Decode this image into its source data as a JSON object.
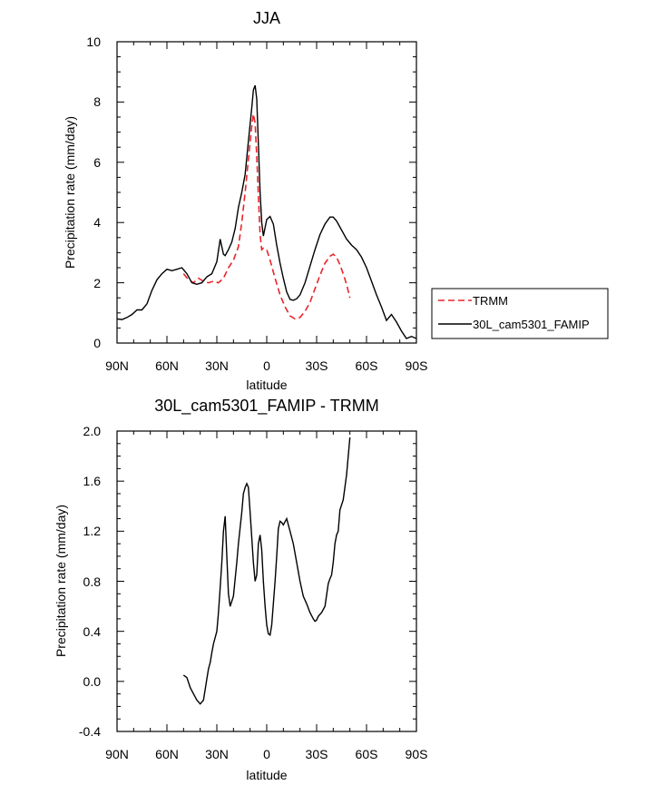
{
  "chart_data": [
    {
      "type": "line",
      "title": "JJA",
      "xlabel": "latitude",
      "ylabel": "Precipitation rate (mm/day)",
      "xlim": [
        90,
        -90
      ],
      "ylim": [
        0,
        10
      ],
      "x_ticks": [
        90,
        60,
        30,
        0,
        -30,
        -60,
        -90
      ],
      "x_tick_labels": [
        "90N",
        "60N",
        "30N",
        "0",
        "30S",
        "60S",
        "90S"
      ],
      "y_ticks": [
        0,
        2,
        4,
        6,
        8,
        10
      ],
      "y_tick_labels": [
        "0",
        "2",
        "4",
        "6",
        "8",
        "10"
      ],
      "legend": [
        "TRMM",
        "30L_cam5301_FAMIP"
      ],
      "series": [
        {
          "name": "TRMM",
          "color": "#e8242a",
          "dash": true,
          "x": [
            50,
            47,
            44,
            41,
            38,
            35,
            32,
            29,
            26,
            23,
            20,
            17,
            15,
            13,
            11,
            9,
            8,
            7,
            6,
            5,
            4,
            3,
            2,
            0,
            -2,
            -5,
            -8,
            -11,
            -14,
            -17,
            -20,
            -23,
            -26,
            -29,
            -32,
            -35,
            -38,
            -40,
            -42,
            -44,
            -46,
            -48,
            -50
          ],
          "values": [
            2.3,
            2.1,
            2.0,
            2.15,
            2.05,
            2.0,
            2.05,
            2.0,
            2.15,
            2.5,
            2.75,
            3.2,
            4.0,
            5.0,
            6.1,
            7.2,
            7.6,
            7.3,
            6.2,
            4.9,
            3.6,
            3.1,
            3.15,
            3.1,
            2.75,
            2.15,
            1.6,
            1.2,
            0.9,
            0.8,
            0.85,
            1.05,
            1.35,
            1.8,
            2.25,
            2.65,
            2.88,
            2.95,
            2.85,
            2.6,
            2.3,
            1.95,
            1.5
          ]
        },
        {
          "name": "30L_cam5301_FAMIP",
          "color": "#000000",
          "dash": false,
          "x": [
            90,
            87,
            84,
            81,
            78,
            75,
            72,
            69,
            66,
            63,
            60,
            57,
            54,
            51,
            48,
            45,
            42,
            39,
            36,
            33,
            30,
            28,
            27,
            26,
            25,
            23,
            21,
            19,
            17,
            15,
            13,
            11,
            9,
            8,
            7,
            6,
            5,
            4,
            3,
            2,
            0,
            -2,
            -4,
            -6,
            -8,
            -10,
            -12,
            -14,
            -16,
            -18,
            -20,
            -23,
            -26,
            -29,
            -32,
            -35,
            -38,
            -40,
            -42,
            -45,
            -48,
            -51,
            -54,
            -57,
            -60,
            -63,
            -66,
            -69,
            -72,
            -75,
            -78,
            -81,
            -84,
            -87,
            -90
          ],
          "values": [
            0.8,
            0.78,
            0.85,
            0.95,
            1.1,
            1.1,
            1.3,
            1.75,
            2.1,
            2.3,
            2.45,
            2.4,
            2.45,
            2.5,
            2.3,
            2.0,
            1.95,
            2.0,
            2.2,
            2.3,
            2.7,
            3.45,
            3.2,
            2.95,
            2.9,
            3.1,
            3.35,
            3.8,
            4.5,
            5.0,
            5.6,
            6.7,
            7.8,
            8.4,
            8.55,
            8.1,
            6.6,
            5.0,
            4.0,
            3.55,
            4.1,
            4.2,
            3.95,
            3.25,
            2.65,
            2.15,
            1.7,
            1.45,
            1.42,
            1.47,
            1.6,
            2.0,
            2.55,
            3.1,
            3.6,
            3.95,
            4.18,
            4.18,
            4.05,
            3.75,
            3.45,
            3.25,
            3.1,
            2.85,
            2.5,
            2.05,
            1.6,
            1.2,
            0.75,
            0.95,
            0.7,
            0.4,
            0.15,
            0.22,
            0.15
          ]
        }
      ]
    },
    {
      "type": "line",
      "title": "30L_cam5301_FAMIP - TRMM",
      "xlabel": "latitude",
      "ylabel": "Precipitation rate (mm/day)",
      "xlim": [
        90,
        -90
      ],
      "ylim": [
        -0.4,
        2.0
      ],
      "x_ticks": [
        90,
        60,
        30,
        0,
        -30,
        -60,
        -90
      ],
      "x_tick_labels": [
        "90N",
        "60N",
        "30N",
        "0",
        "30S",
        "60S",
        "90S"
      ],
      "y_ticks": [
        -0.4,
        0.0,
        0.4,
        0.8,
        1.2,
        1.6,
        2.0
      ],
      "y_tick_labels": [
        "-0.4",
        "0.0",
        "0.4",
        "0.8",
        "1.2",
        "1.6",
        "2.0"
      ],
      "series": [
        {
          "name": "30L_cam5301_FAMIP - TRMM",
          "color": "#000000",
          "dash": false,
          "x": [
            50,
            48,
            46,
            44,
            42,
            40,
            38,
            36,
            35,
            34,
            33,
            32,
            30,
            29,
            28,
            27,
            26,
            25,
            24,
            23,
            22,
            20,
            18,
            17,
            15,
            14,
            13,
            12,
            11,
            10,
            9,
            8,
            7,
            6,
            5,
            4,
            3,
            2,
            1,
            0,
            -1,
            -2,
            -3,
            -4,
            -5,
            -6,
            -7,
            -8,
            -9,
            -10,
            -12,
            -14,
            -16,
            -18,
            -20,
            -22,
            -24,
            -26,
            -28,
            -29,
            -30,
            -31,
            -33,
            -35,
            -37,
            -38,
            -39,
            -40,
            -41,
            -42,
            -43,
            -44,
            -46,
            -48,
            -50
          ],
          "values": [
            0.05,
            0.03,
            -0.05,
            -0.1,
            -0.15,
            -0.18,
            -0.15,
            0.02,
            0.1,
            0.15,
            0.23,
            0.3,
            0.4,
            0.55,
            0.75,
            0.95,
            1.2,
            1.32,
            1.0,
            0.7,
            0.6,
            0.68,
            0.95,
            1.1,
            1.35,
            1.5,
            1.55,
            1.58,
            1.55,
            1.35,
            1.15,
            0.95,
            0.8,
            0.85,
            1.1,
            1.17,
            1.05,
            0.8,
            0.6,
            0.45,
            0.38,
            0.37,
            0.45,
            0.62,
            0.8,
            1.0,
            1.22,
            1.28,
            1.27,
            1.25,
            1.3,
            1.2,
            1.1,
            0.95,
            0.8,
            0.68,
            0.62,
            0.55,
            0.5,
            0.48,
            0.49,
            0.52,
            0.55,
            0.6,
            0.78,
            0.82,
            0.85,
            0.95,
            1.1,
            1.17,
            1.2,
            1.37,
            1.45,
            1.65,
            1.95
          ]
        }
      ]
    }
  ]
}
